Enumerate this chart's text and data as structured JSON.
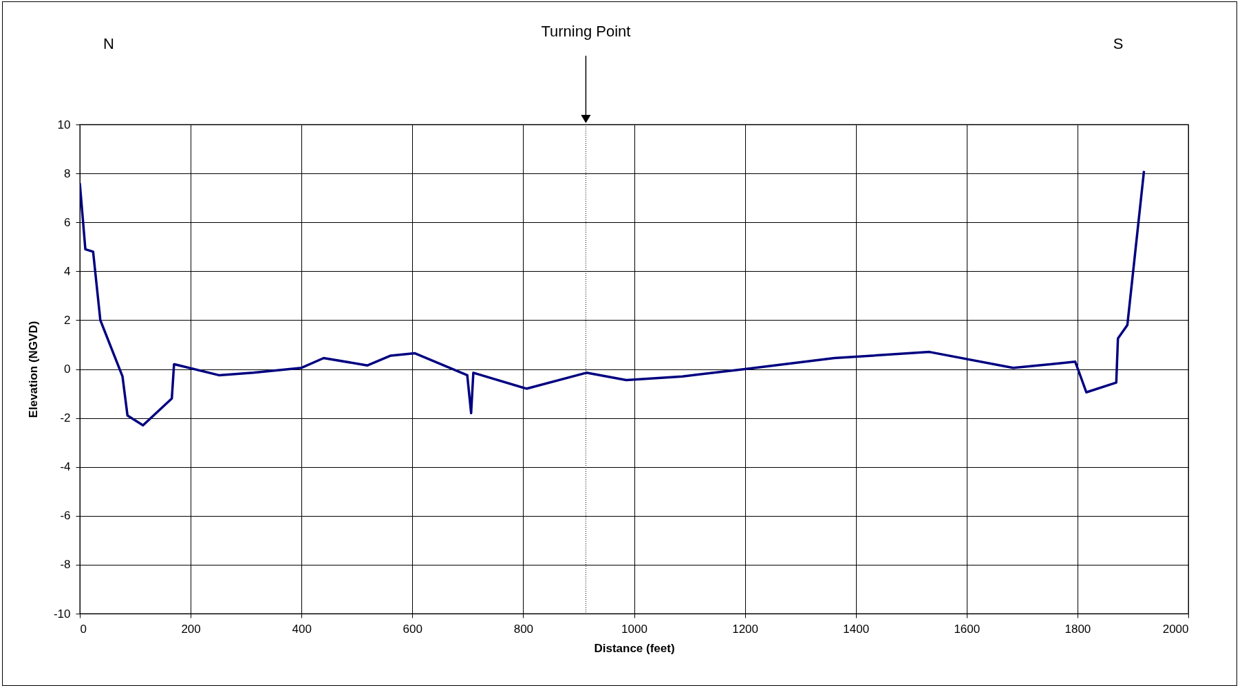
{
  "chart_data": {
    "type": "line",
    "xlabel": "Distance (feet)",
    "ylabel": "Elevation (NGVD)",
    "x": [
      0,
      10,
      24,
      37,
      77,
      86,
      114,
      166,
      170,
      251,
      313,
      400,
      440,
      519,
      561,
      604,
      699,
      706,
      710,
      806,
      914,
      986,
      1087,
      1200,
      1361,
      1533,
      1684,
      1796,
      1816,
      1870,
      1873,
      1890,
      1920
    ],
    "series": [
      {
        "color": "#000080",
        "values": [
          7.6,
          4.9,
          4.8,
          2.0,
          -0.3,
          -1.9,
          -2.3,
          -1.2,
          0.2,
          -0.25,
          -0.15,
          0.05,
          0.45,
          0.15,
          0.55,
          0.65,
          -0.25,
          -1.8,
          -0.15,
          -0.8,
          -0.15,
          -0.45,
          -0.3,
          0,
          0.45,
          0.7,
          0.05,
          0.3,
          -0.95,
          -0.55,
          1.25,
          1.8,
          8.1
        ]
      }
    ],
    "xlim": [
      0,
      2000
    ],
    "xticks": [
      0,
      200,
      400,
      600,
      800,
      1000,
      1200,
      1400,
      1600,
      1800,
      2000
    ],
    "ylim": [
      -10,
      10
    ],
    "yticks": [
      -10,
      -8,
      -6,
      -4,
      -2,
      0,
      2,
      4,
      6,
      8,
      10
    ],
    "grid": true,
    "legend": false,
    "marker": "none",
    "line_style": "solid",
    "ref_lines": [
      {
        "axis": "x",
        "value": 913,
        "label": "Turning Point",
        "line_style": "dotted"
      }
    ],
    "annotations": [
      "N",
      "S"
    ]
  }
}
